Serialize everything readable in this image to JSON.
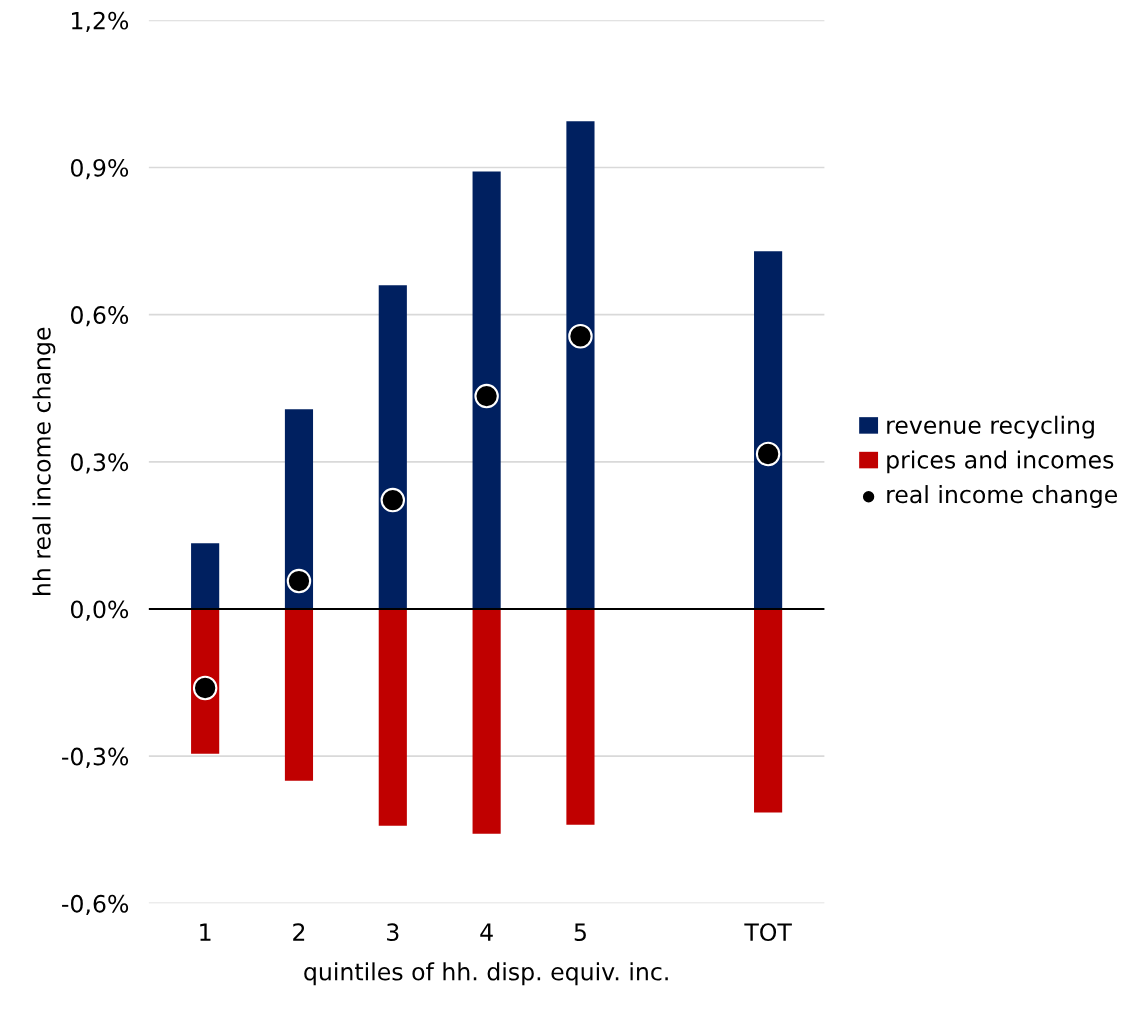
{
  "chart_data": {
    "type": "bar",
    "xlabel": "quintiles of hh. disp. equiv. inc.",
    "ylabel": "hh real income change",
    "categories": [
      "1",
      "2",
      "3",
      "4",
      "5",
      null,
      "TOT"
    ],
    "series": [
      {
        "name": "revenue recycling",
        "color": "#002060",
        "values": [
          0.134,
          0.407,
          0.66,
          0.892,
          0.994,
          null,
          0.729
        ]
      },
      {
        "name": "prices and incomes",
        "color": "#c00000",
        "values": [
          -0.295,
          -0.35,
          -0.442,
          -0.458,
          -0.44,
          null,
          -0.415
        ]
      },
      {
        "name": "real income change",
        "type": "scatter",
        "color": "#000000",
        "marker": "circle",
        "values": [
          -0.161,
          0.057,
          0.222,
          0.434,
          0.556,
          null,
          0.316
        ]
      }
    ],
    "ylim": [
      -0.6,
      1.2
    ],
    "yticks": [
      {
        "value": -0.6,
        "label": "-0,6%"
      },
      {
        "value": -0.3,
        "label": "-0,3%"
      },
      {
        "value": 0,
        "label": "0,0%"
      },
      {
        "value": 0.3,
        "label": "0,3%"
      },
      {
        "value": 0.6,
        "label": "0,6%"
      },
      {
        "value": 0.9,
        "label": "0,9%"
      },
      {
        "value": 1.2,
        "label": "1,2%"
      }
    ],
    "ref_lines": [
      {
        "axis": "y",
        "value": 0,
        "color": "#000000"
      }
    ],
    "grid": "y",
    "legend": "right",
    "stacked": true
  }
}
